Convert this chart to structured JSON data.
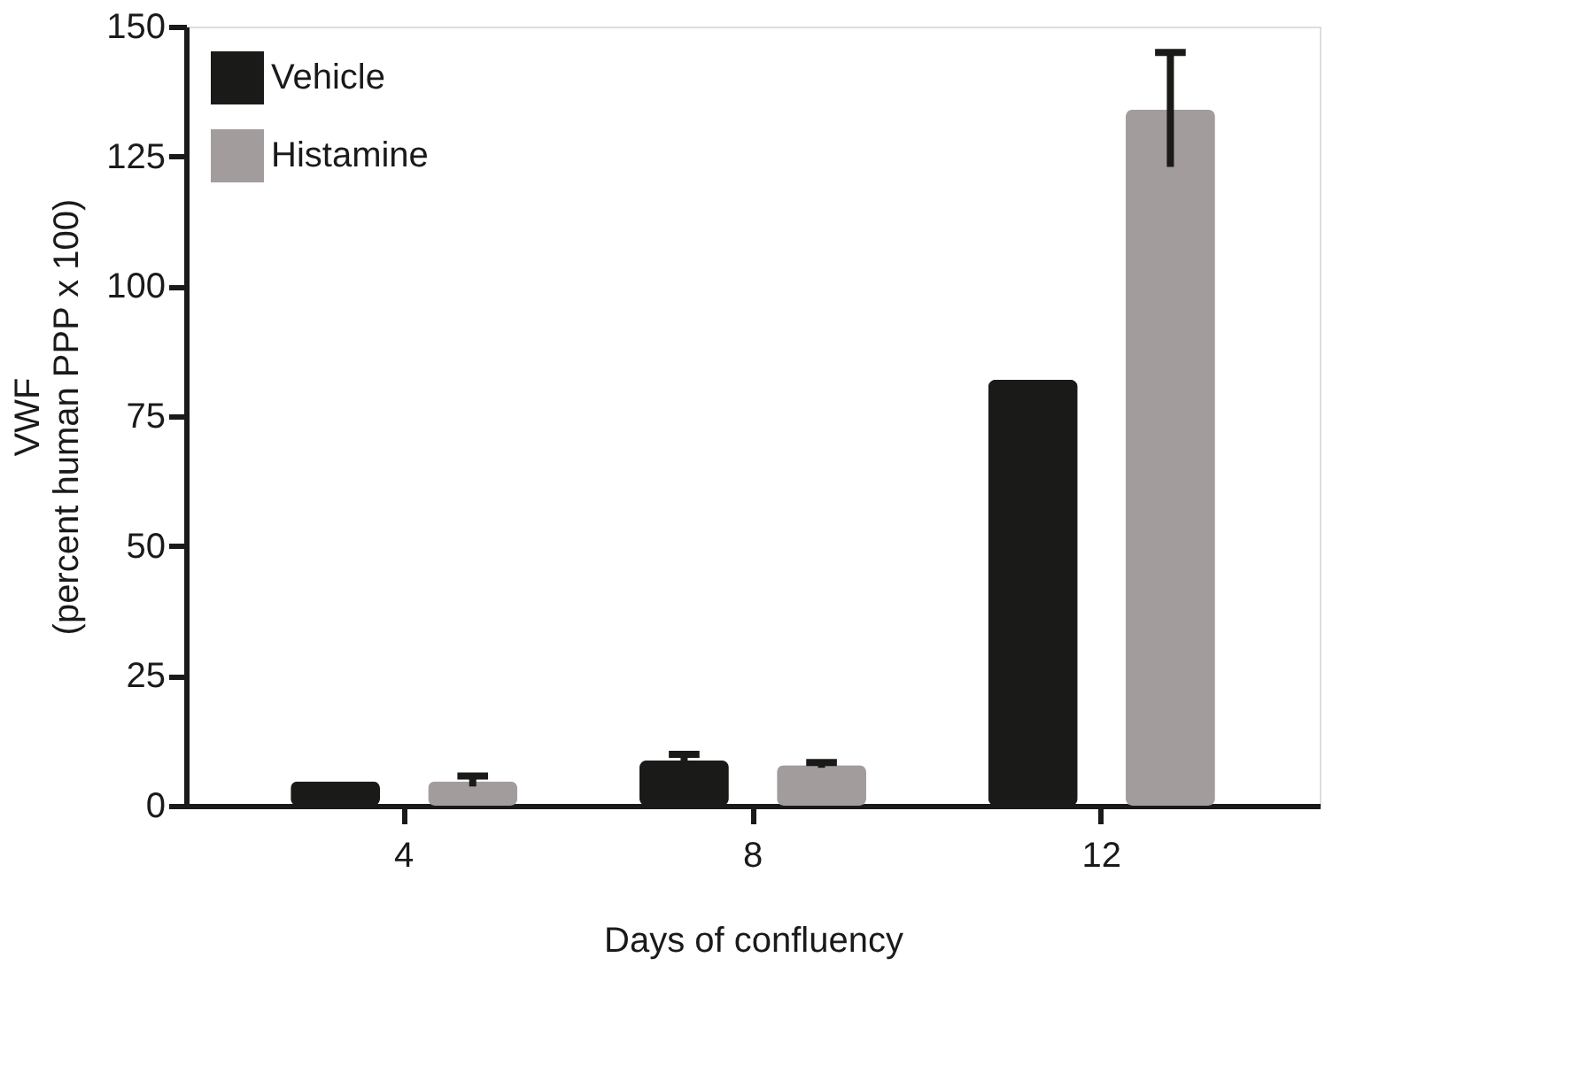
{
  "chart_data": {
    "type": "bar",
    "xlabel": "Days of confluency",
    "ylabel": "VWF\n(percent human PPP x 100)",
    "categories": [
      "4",
      "8",
      "12"
    ],
    "series": [
      {
        "name": "Vehicle",
        "color": "#1a1a18",
        "values": [
          4.7,
          8.7,
          82
        ],
        "errors": [
          null,
          1.2,
          null
        ]
      },
      {
        "name": "Histamine",
        "color": "#a39c9c",
        "values": [
          4.7,
          7.8,
          134
        ],
        "errors": [
          1,
          0.5,
          11
        ]
      }
    ],
    "ylim": [
      0,
      150
    ],
    "yticks": [
      0,
      25,
      50,
      75,
      100,
      125,
      150
    ],
    "grid": false,
    "legend": "top left"
  }
}
